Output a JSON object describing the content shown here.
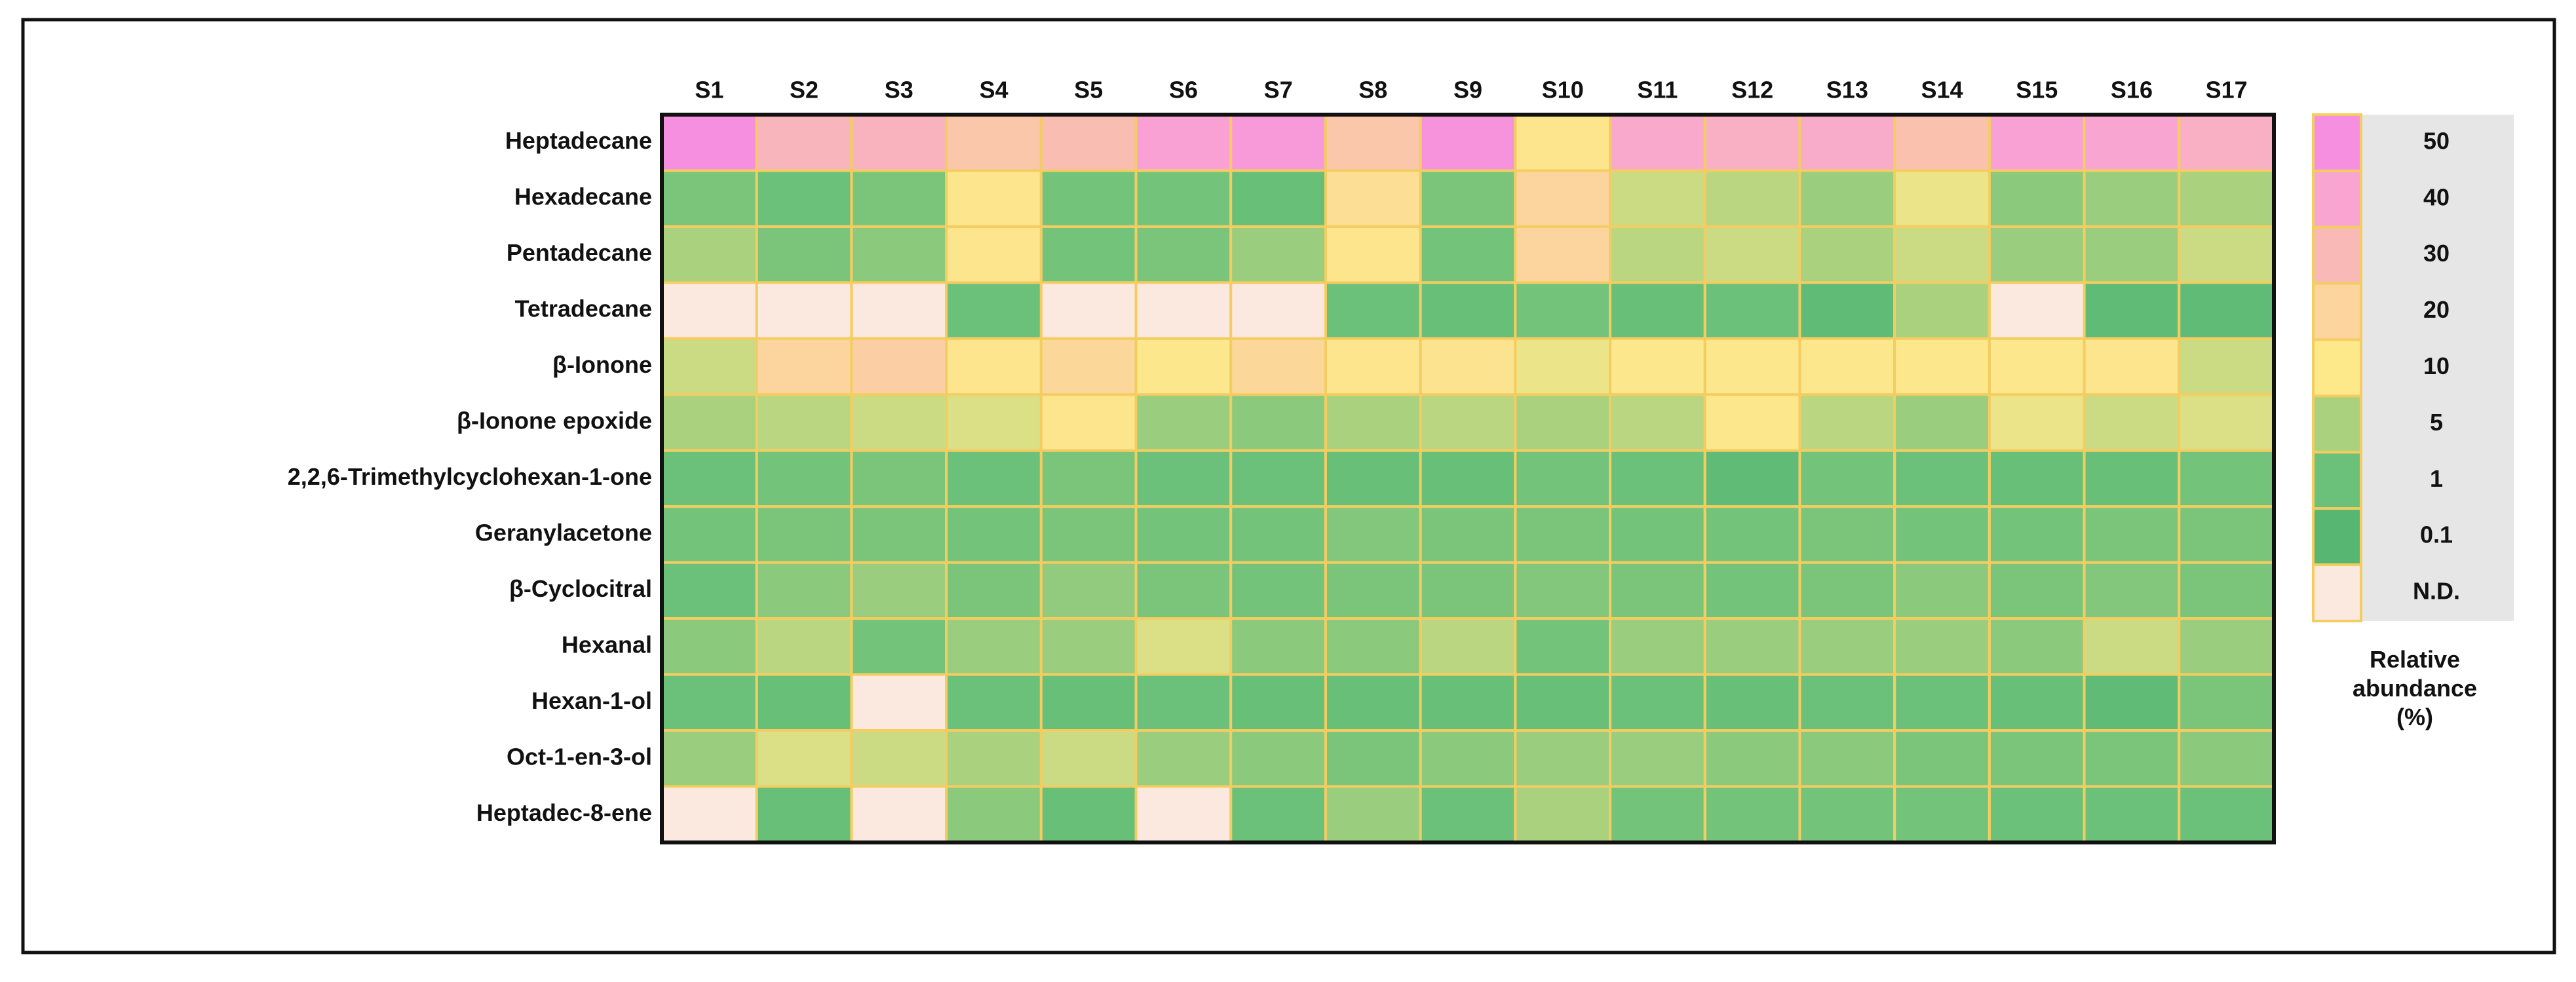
{
  "chart_data": {
    "type": "heatmap",
    "columns": [
      "S1",
      "S2",
      "S3",
      "S4",
      "S5",
      "S6",
      "S7",
      "S8",
      "S9",
      "S10",
      "S11",
      "S12",
      "S13",
      "S14",
      "S15",
      "S16",
      "S17"
    ],
    "rows": [
      "Heptadecane",
      "Hexadecane",
      "Pentadecane",
      "Tetradecane",
      "β-Ionone",
      "β-Ionone epoxide",
      "2,2,6-Trimethylcyclohexan-1-one",
      "Geranylacetone",
      "β-Cyclocitral",
      "Hexanal",
      "Hexan-1-ol",
      "Oct-1-en-3-ol",
      "Heptadec-8-ene"
    ],
    "values": [
      [
        50,
        32,
        33,
        25,
        28,
        42,
        45,
        25,
        48,
        12,
        38,
        35,
        37,
        27,
        42,
        40,
        35
      ],
      [
        2,
        1,
        2,
        12,
        1.5,
        1.5,
        0.8,
        15,
        2,
        20,
        7,
        6,
        4,
        9,
        3,
        4,
        5
      ],
      [
        5,
        2,
        3,
        12,
        1.5,
        2,
        4,
        12,
        1.5,
        20,
        6,
        7,
        5,
        7,
        4,
        4,
        7
      ],
      [
        null,
        null,
        null,
        1,
        null,
        null,
        null,
        1,
        0.8,
        1.5,
        0.8,
        1,
        0.5,
        5,
        null,
        0.5,
        0.5
      ],
      [
        7,
        20,
        22,
        12,
        18,
        11,
        18,
        12,
        13,
        9,
        11,
        11,
        11,
        11,
        11,
        12,
        7
      ],
      [
        5,
        6,
        7,
        8,
        12,
        4,
        3,
        5,
        6,
        5,
        6,
        11,
        6,
        4,
        9,
        7,
        8
      ],
      [
        1,
        1.5,
        2,
        1,
        2,
        1,
        1,
        0.8,
        0.8,
        1.5,
        1,
        0.5,
        1.5,
        1,
        0.8,
        0.8,
        1.5
      ],
      [
        1.5,
        2,
        2,
        1.5,
        2,
        1.5,
        1.5,
        2.5,
        2,
        2,
        1.5,
        1.5,
        2,
        1.5,
        1.5,
        2,
        2
      ],
      [
        1,
        3,
        4,
        2,
        3.5,
        2,
        1.5,
        2,
        2,
        2.5,
        2,
        1.5,
        2,
        3,
        2,
        2.5,
        2
      ],
      [
        3,
        6,
        1.5,
        4,
        4,
        8,
        3,
        3,
        6,
        1.5,
        4,
        4,
        4,
        4,
        3,
        7,
        4
      ],
      [
        1,
        0.8,
        null,
        1,
        0.8,
        1,
        0.8,
        0.8,
        0.8,
        0.8,
        1,
        0.8,
        1,
        1,
        0.8,
        0.5,
        2
      ],
      [
        4,
        8,
        7,
        5,
        7,
        4,
        3,
        2,
        3,
        4,
        4,
        3,
        3,
        2,
        2,
        2,
        3
      ],
      [
        null,
        0.8,
        null,
        3,
        0.8,
        null,
        1,
        4,
        1,
        5,
        1.5,
        1.5,
        1.5,
        1.5,
        1,
        1,
        1
      ]
    ],
    "colorbar": {
      "title": "Relative abundance (%)",
      "ticks": [
        50,
        40,
        30,
        20,
        10,
        5,
        1,
        0.1
      ],
      "colors": [
        "#f78fe0",
        "#f9a5d2",
        "#f9b9b6",
        "#fbd49e",
        "#fde98a",
        "#a9d17e",
        "#6cc17a",
        "#57b672"
      ],
      "nd_label": "N.D.",
      "nd_color": "#fbe9df"
    }
  }
}
